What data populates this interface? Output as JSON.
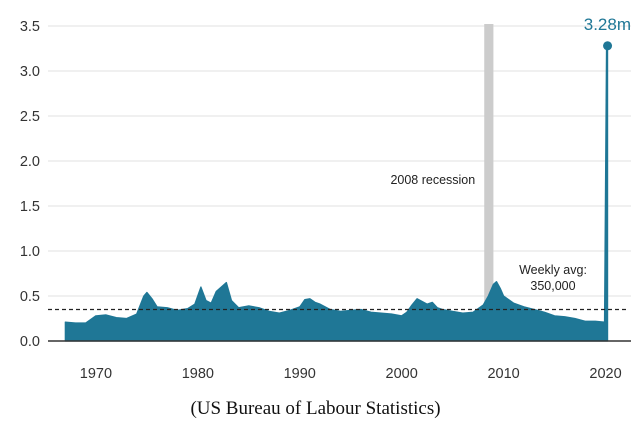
{
  "chart_data": {
    "type": "area",
    "title": "",
    "xlabel": "",
    "ylabel": "",
    "xlim": [
      1965.3,
      2022.5
    ],
    "ylim": [
      0,
      3.5
    ],
    "grid": "horizontal",
    "y_ticks": [
      "0.0",
      "0.5",
      "1.0",
      "1.5",
      "2.0",
      "2.5",
      "3.0",
      "3.5"
    ],
    "x_ticks": [
      "1970",
      "1980",
      "1990",
      "2000",
      "2010",
      "2020"
    ],
    "series": [
      {
        "x": [
          1967.0,
          1968.0,
          1969.0,
          1970.0,
          1971.0,
          1972.0,
          1973.0,
          1974.0,
          1974.7,
          1975.0,
          1975.5,
          1976.0,
          1977.0,
          1978.0,
          1979.0,
          1979.7,
          1980.3,
          1980.8,
          1981.3,
          1981.8,
          1982.3,
          1982.8,
          1983.3,
          1984.0,
          1985.0,
          1986.0,
          1987.0,
          1988.0,
          1989.0,
          1990.0,
          1990.5,
          1991.0,
          1991.5,
          1992.0,
          1993.0,
          1994.0,
          1995.0,
          1996.0,
          1997.0,
          1998.0,
          1999.0,
          2000.0,
          2000.5,
          2001.0,
          2001.5,
          2002.0,
          2002.5,
          2003.0,
          2003.5,
          2004.0,
          2005.0,
          2006.0,
          2007.0,
          2008.0,
          2008.5,
          2009.0,
          2009.3,
          2009.7,
          2010.0,
          2010.5,
          2011.0,
          2012.0,
          2013.0,
          2014.0,
          2015.0,
          2016.0,
          2017.0,
          2018.0,
          2019.0,
          2019.9,
          2020.1,
          2020.2
        ],
        "y": [
          0.21,
          0.2,
          0.2,
          0.28,
          0.29,
          0.26,
          0.25,
          0.3,
          0.5,
          0.54,
          0.47,
          0.38,
          0.37,
          0.34,
          0.36,
          0.41,
          0.6,
          0.45,
          0.42,
          0.55,
          0.6,
          0.65,
          0.45,
          0.37,
          0.39,
          0.37,
          0.33,
          0.31,
          0.34,
          0.38,
          0.46,
          0.47,
          0.43,
          0.41,
          0.35,
          0.33,
          0.34,
          0.35,
          0.32,
          0.31,
          0.3,
          0.28,
          0.32,
          0.4,
          0.47,
          0.44,
          0.41,
          0.43,
          0.37,
          0.35,
          0.33,
          0.31,
          0.32,
          0.4,
          0.5,
          0.63,
          0.66,
          0.58,
          0.5,
          0.46,
          0.42,
          0.38,
          0.35,
          0.32,
          0.28,
          0.27,
          0.25,
          0.22,
          0.22,
          0.21,
          3.28,
          3.28
        ]
      }
    ],
    "peak": {
      "x": 2020.2,
      "y": 3.28,
      "label": "3.28m"
    },
    "average": {
      "y": 0.35,
      "label_line1": "Weekly avg:",
      "label_line2": "350,000"
    },
    "recession": {
      "x_start": 2008.1,
      "x_end": 2009.0,
      "label": "2008 recession"
    },
    "colors": {
      "area": "#1f7796",
      "recession": "#cccccc",
      "grid": "#e2e2e2",
      "axis": "#333333"
    }
  },
  "caption": "(US Bureau of Labour Statistics)"
}
